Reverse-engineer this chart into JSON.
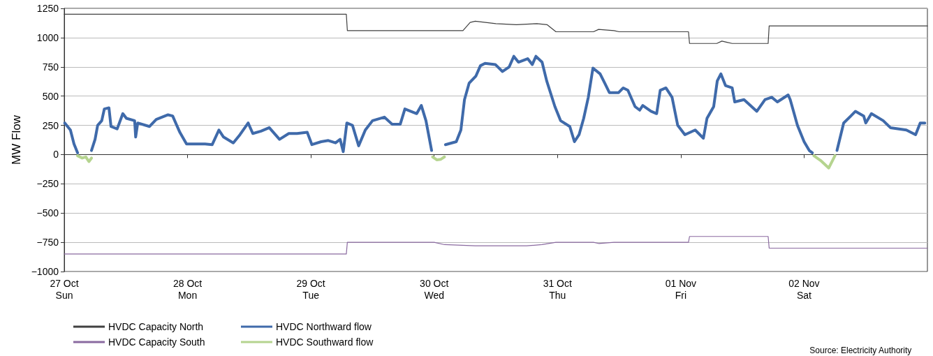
{
  "chart_data": {
    "type": "line",
    "ylabel": "MW Flow",
    "annotations": [
      "Source: Electricity Authority"
    ],
    "xlim": [
      "--10-27",
      "--11-03"
    ],
    "xticks": [
      {
        "value": "--10-27",
        "label": "27 Oct\nSun"
      },
      {
        "value": "--10-28",
        "label": "28 Oct\nMon"
      },
      {
        "value": "--10-29",
        "label": "29 Oct\nTue"
      },
      {
        "value": "--10-30",
        "label": "30 Oct\nWed"
      },
      {
        "value": "--10-31",
        "label": "31 Oct\nThu"
      },
      {
        "value": "--11-01",
        "label": "01 Nov\nFri"
      },
      {
        "value": "--11-02",
        "label": "02 Nov\nSat"
      }
    ],
    "ylim": [
      -1000,
      1250
    ],
    "yticks": [
      -1000,
      -750,
      -500,
      -250,
      0,
      250,
      500,
      750,
      1000,
      1250
    ],
    "grid": "y",
    "legend": "bottom left",
    "marker": "none",
    "line_style": "solid",
    "series": [
      {
        "name": "HVDC Capacity North",
        "color": "#404040",
        "x": [
          "--10-27T00:00",
          "--10-29T06:54",
          "--10-29T07:06",
          "--10-30T05:36",
          "--10-30T07:00",
          "--10-30T08:00",
          "--10-30T12:00",
          "--10-30T16:00",
          "--10-30T20:00",
          "--10-30T22:00",
          "--10-30T23:42",
          "--10-31T07:00",
          "--10-31T08:00",
          "--10-31T11:00",
          "--10-31T12:00",
          "--11-01T01:30",
          "--11-01T01:42",
          "--11-01T07:00",
          "--11-01T08:00",
          "--11-01T09:00",
          "--11-01T10:00",
          "--11-01T17:00",
          "--11-01T17:12",
          "--11-03T00:00"
        ],
        "values": [
          1200,
          1200,
          1060,
          1060,
          1130,
          1140,
          1120,
          1110,
          1120,
          1110,
          1050,
          1050,
          1070,
          1060,
          1050,
          1050,
          950,
          950,
          970,
          960,
          950,
          950,
          1100,
          1100
        ]
      },
      {
        "name": "HVDC Capacity South",
        "color": "#8a6aa0",
        "x": [
          "--10-27T00:00",
          "--10-29T06:54",
          "--10-29T07:06",
          "--10-30T00:00",
          "--10-30T02:00",
          "--10-30T08:00",
          "--10-30T18:00",
          "--10-30T21:00",
          "--10-30T23:42",
          "--10-31T07:00",
          "--10-31T08:00",
          "--10-31T11:00",
          "--11-01T01:30",
          "--11-01T01:42",
          "--11-01T17:00",
          "--11-01T17:12",
          "--11-03T00:00"
        ],
        "values": [
          -850,
          -850,
          -750,
          -750,
          -770,
          -780,
          -780,
          -770,
          -750,
          -750,
          -760,
          -750,
          -750,
          -700,
          -700,
          -800,
          -800
        ]
      },
      {
        "name": "HVDC Northward flow",
        "color": "#3f6aaa",
        "x": [
          "--10-27T00:06",
          "--10-27T01:12",
          "--10-27T01:54",
          "--10-27T02:36",
          "--10-27T04:00",
          "--10-27T05:18",
          "--10-27T06:00",
          "--10-27T06:30",
          "--10-27T07:18",
          "--10-27T07:48",
          "--10-27T08:42",
          "--10-27T09:06",
          "--10-27T10:18",
          "--10-27T11:24",
          "--10-27T12:06",
          "--10-27T13:42",
          "--10-27T13:54",
          "--10-27T14:18",
          "--10-27T16:36",
          "--10-27T17:54",
          "--10-27T20:12",
          "--10-27T21:06",
          "--10-27T22:30",
          "--10-27T23:48",
          "--10-28T03:24",
          "--10-28T04:48",
          "--10-28T06:06",
          "--10-28T07:00",
          "--10-28T08:54",
          "--10-28T10:12",
          "--10-28T11:48",
          "--10-28T12:42",
          "--10-28T14:18",
          "--10-28T15:54",
          "--10-28T17:54",
          "--10-28T19:42",
          "--10-28T21:18",
          "--10-28T23:18",
          "--10-29T00:12",
          "--10-29T02:00",
          "--10-29T03:24",
          "--10-29T04:48",
          "--10-29T05:42",
          "--10-29T06:18",
          "--10-29T07:00",
          "--10-29T08:06",
          "--10-29T09:18",
          "--10-29T10:36",
          "--10-29T12:00",
          "--10-29T14:18",
          "--10-29T15:48",
          "--10-29T17:24",
          "--10-29T18:18",
          "--10-29T20:36",
          "--10-29T21:30",
          "--10-29T22:24",
          "--10-29T23:30",
          "--10-30T01:00",
          "--10-30T02:12",
          "--10-30T04:18",
          "--10-30T05:12",
          "--10-30T05:54",
          "--10-30T06:48",
          "--10-30T08:06",
          "--10-30T09:00",
          "--10-30T09:54",
          "--10-30T11:54",
          "--10-30T13:18",
          "--10-30T14:36",
          "--10-30T15:30",
          "--10-30T16:24",
          "--10-30T18:12",
          "--10-30T19:06",
          "--10-30T19:48",
          "--10-30T21:00",
          "--10-30T21:54",
          "--10-30T23:30",
          "--10-31T00:36",
          "--10-31T02:24",
          "--10-31T03:18",
          "--10-31T04:12",
          "--10-31T05:06",
          "--10-31T06:00",
          "--10-31T06:54",
          "--10-31T08:18",
          "--10-31T09:12",
          "--10-31T10:06",
          "--10-31T11:54",
          "--10-31T12:48",
          "--10-31T13:42",
          "--10-31T15:06",
          "--10-31T16:00",
          "--10-31T16:36",
          "--10-31T18:12",
          "--10-31T19:18",
          "--10-31T20:00",
          "--10-31T21:06",
          "--10-31T22:18",
          "--10-31T23:24",
          "--11-01T00:48",
          "--11-01T02:48",
          "--11-01T04:24",
          "--11-01T05:06",
          "--11-01T06:24",
          "--11-01T07:06",
          "--11-01T07:48",
          "--11-01T08:42",
          "--11-01T10:00",
          "--11-01T10:30",
          "--11-01T12:18",
          "--11-01T14:48",
          "--11-01T16:24",
          "--11-01T17:42",
          "--11-01T18:48",
          "--11-01T20:54",
          "--11-01T21:18",
          "--11-01T22:42",
          "--11-02T00:00",
          "--11-02T01:00",
          "--11-02T01:36",
          "--11-02T04:00",
          "--11-02T06:24",
          "--11-02T07:42",
          "--11-02T09:06",
          "--11-02T10:00",
          "--11-02T11:36",
          "--11-02T12:00",
          "--11-02T13:06",
          "--11-02T15:24",
          "--11-02T16:48",
          "--11-02T19:54",
          "--11-02T21:42",
          "--11-02T22:36",
          "--11-02T23:30"
        ],
        "values": [
          270,
          210,
          90,
          15,
          null,
          35,
          130,
          250,
          290,
          390,
          400,
          240,
          220,
          350,
          310,
          290,
          150,
          270,
          240,
          300,
          340,
          330,
          190,
          90,
          90,
          85,
          210,
          150,
          100,
          170,
          270,
          180,
          200,
          230,
          130,
          180,
          180,
          190,
          85,
          110,
          120,
          100,
          130,
          25,
          270,
          250,
          75,
          210,
          290,
          320,
          260,
          260,
          390,
          350,
          420,
          290,
          35,
          null,
          85,
          110,
          210,
          470,
          610,
          670,
          760,
          780,
          770,
          710,
          750,
          840,
          790,
          820,
          770,
          840,
          790,
          630,
          410,
          290,
          240,
          110,
          170,
          310,
          490,
          740,
          690,
          610,
          530,
          530,
          570,
          550,
          410,
          380,
          420,
          370,
          350,
          550,
          570,
          490,
          250,
          170,
          210,
          140,
          310,
          410,
          630,
          690,
          590,
          570,
          450,
          470,
          370,
          470,
          490,
          450,
          510,
          470,
          250,
          110,
          35,
          15,
          null,
          35,
          270,
          330,
          370,
          330,
          270,
          350,
          290,
          230,
          210,
          170,
          270,
          270
        ]
      },
      {
        "name": "HVDC Southward flow",
        "color": "#b5d48f",
        "x": [
          "--10-27T02:36",
          "--10-27T03:30",
          "--10-27T04:12",
          "--10-27T04:48",
          "--10-27T05:18",
          "--10-28T14:00",
          "--10-29T23:42",
          "--10-30T00:30",
          "--10-30T01:18",
          "--10-30T02:00",
          "--10-31T14:00",
          "--11-02T01:54",
          "--11-02T03:12",
          "--11-02T04:48",
          "--11-02T06:00"
        ],
        "values": [
          -10,
          -30,
          -20,
          -60,
          -30,
          null,
          -20,
          -45,
          -40,
          -20,
          null,
          -10,
          -50,
          -115,
          -10
        ]
      }
    ]
  }
}
